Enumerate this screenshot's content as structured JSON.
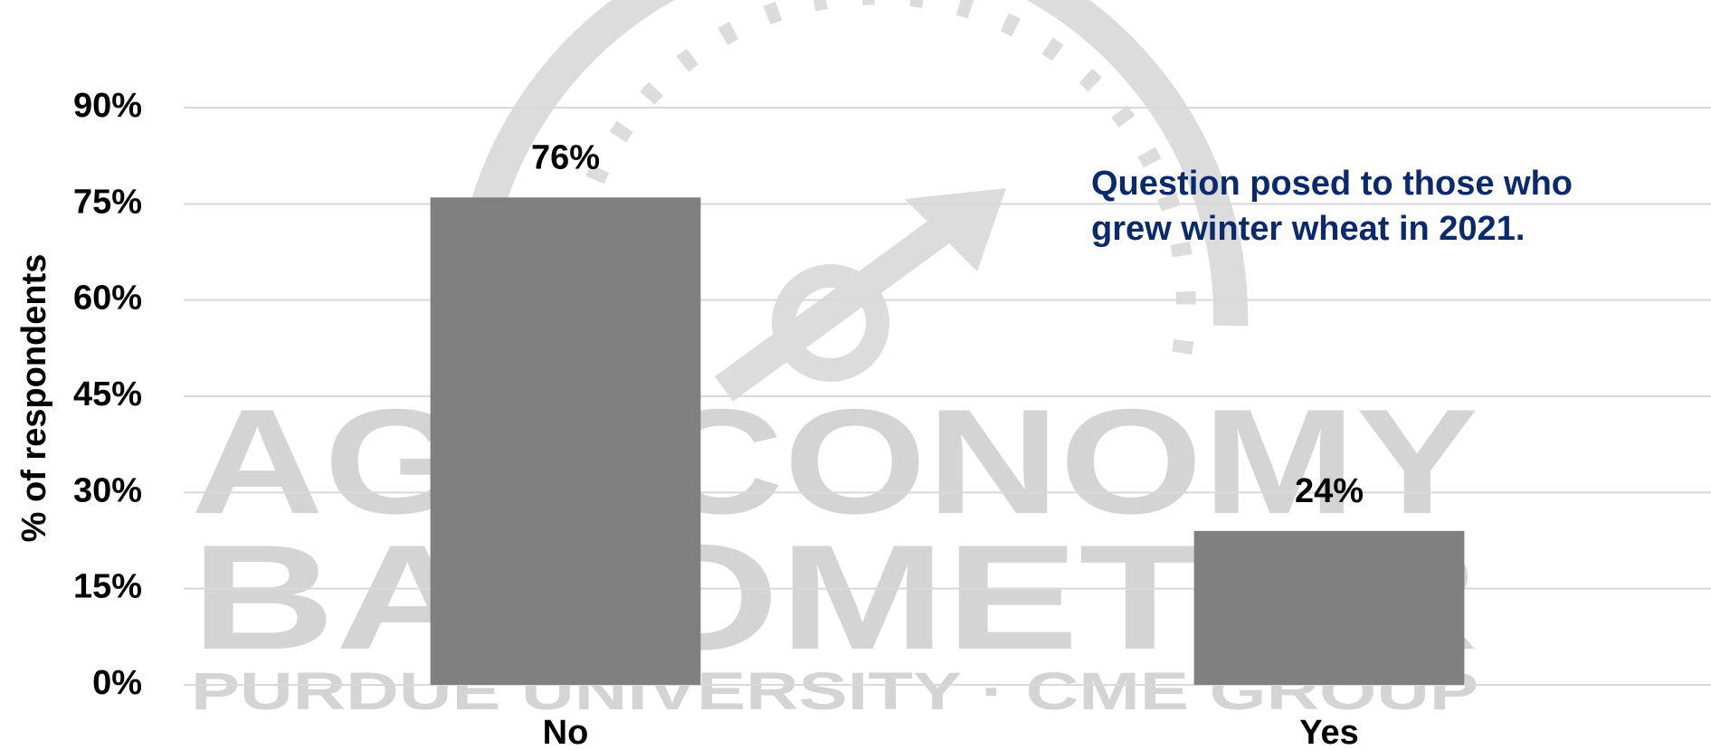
{
  "chart_data": {
    "type": "bar",
    "y_axis_label": "% of respondents",
    "categories": [
      "No",
      "Yes"
    ],
    "values": [
      76,
      24
    ],
    "value_labels": [
      "76%",
      "24%"
    ],
    "color": "#808080",
    "ylim": [
      0,
      90
    ],
    "yticks": [
      {
        "value": 0,
        "label": "0%"
      },
      {
        "value": 15,
        "label": "15%"
      },
      {
        "value": 30,
        "label": "30%"
      },
      {
        "value": 45,
        "label": "45%"
      },
      {
        "value": 60,
        "label": "60%"
      },
      {
        "value": 75,
        "label": "75%"
      },
      {
        "value": 90,
        "label": "90%"
      }
    ],
    "grid": true,
    "annotation": [
      "Question posed to those who",
      "grew winter wheat in 2021."
    ],
    "watermark": [
      "AGRICONOMY",
      "BAROMETER",
      "PURDUE UNIVERSITY · CME GROUP"
    ]
  }
}
